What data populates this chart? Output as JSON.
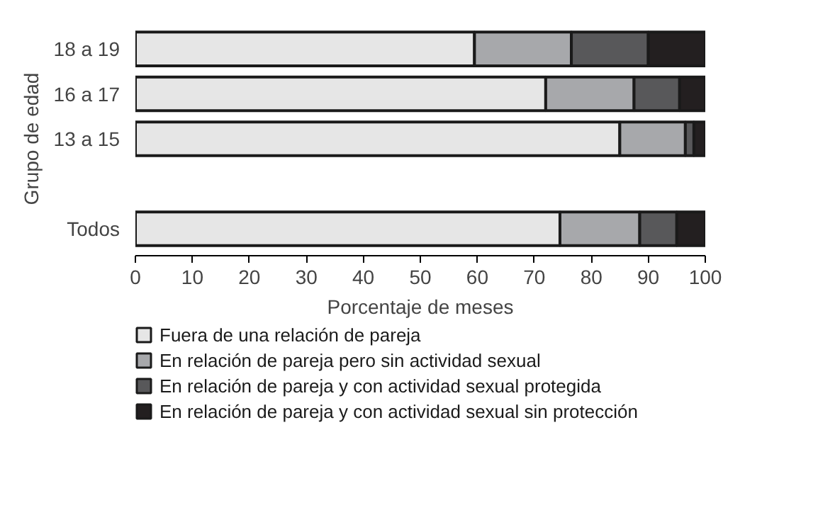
{
  "chart_data": {
    "type": "bar",
    "orientation": "horizontal",
    "stacked": true,
    "ylabel": "Grupo de edad",
    "xlabel": "Porcentaje de meses",
    "categories": [
      "18 a 19",
      "16 a 17",
      "13 a 15",
      null,
      "Todos"
    ],
    "series": [
      {
        "name": "Fuera de una relación de pareja",
        "color": "#e6e6e6",
        "values": [
          59.5,
          72,
          85,
          null,
          74.5
        ]
      },
      {
        "name": "En relación de pareja pero sin actividad sexual",
        "color": "#a7a8ab",
        "values": [
          17,
          15.5,
          11.5,
          null,
          14
        ]
      },
      {
        "name": "En relación de pareja y con actividad sexual protegida",
        "color": "#58585a",
        "values": [
          13.5,
          8,
          1.5,
          null,
          6.5
        ]
      },
      {
        "name": "En relación de pareja y con actividad sexual sin protección",
        "color": "#231f20",
        "values": [
          10,
          4.5,
          2,
          null,
          5
        ]
      }
    ],
    "xlim": [
      0,
      100
    ],
    "xticks": [
      0,
      10,
      20,
      30,
      40,
      50,
      60,
      70,
      80,
      90,
      100
    ],
    "grid": false,
    "legend": "bottom"
  }
}
